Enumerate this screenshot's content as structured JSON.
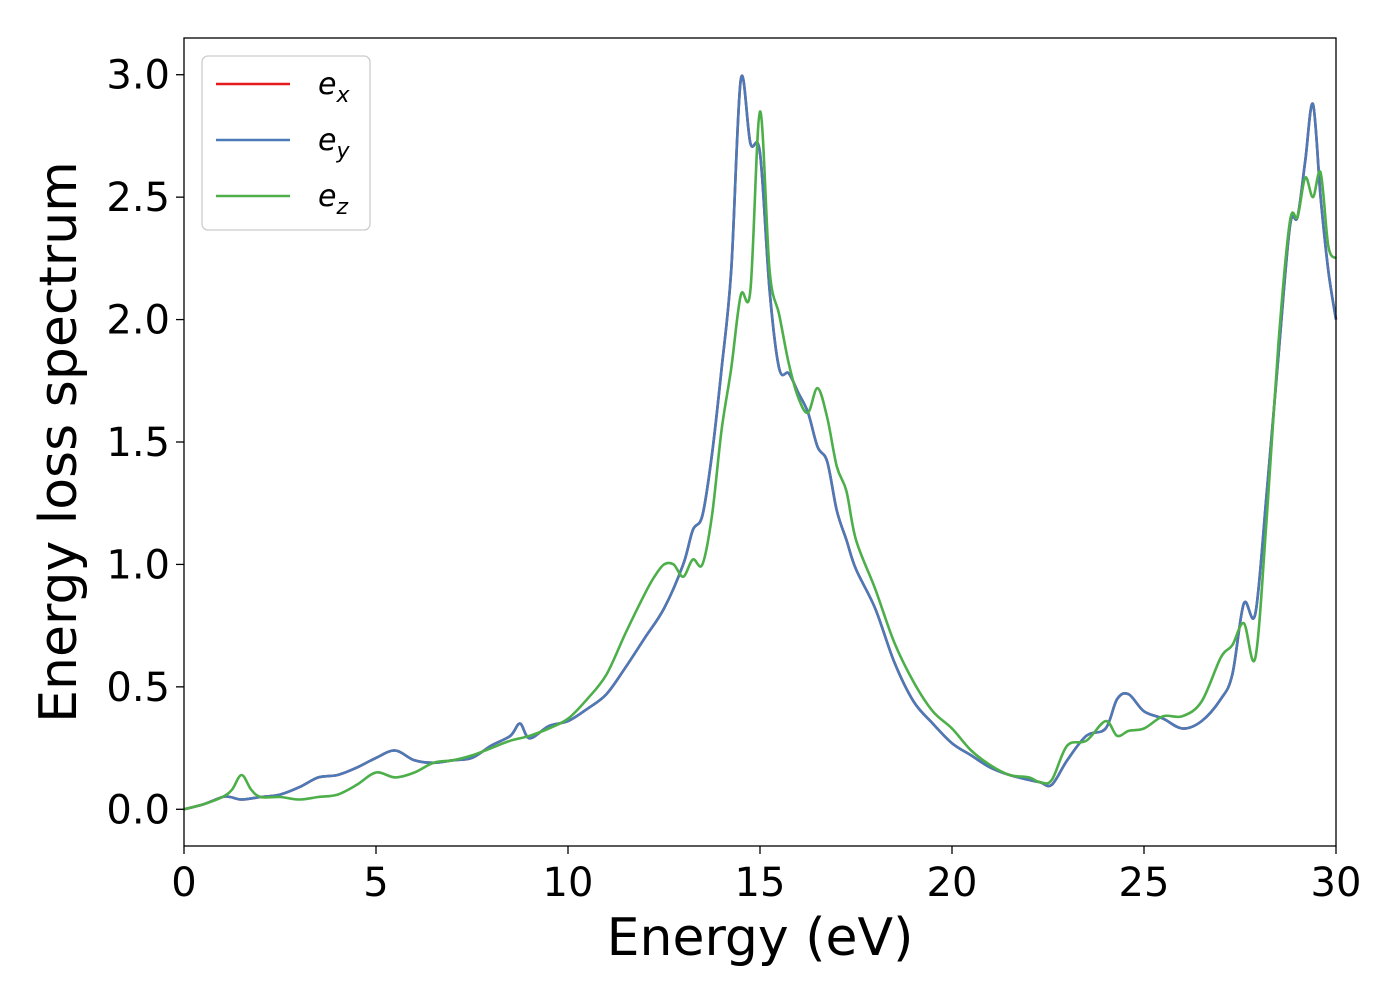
{
  "chart_data": {
    "type": "line",
    "xlabel": "Energy (eV)",
    "ylabel": "Energy loss spectrum",
    "xlim": [
      0,
      30
    ],
    "ylim": [
      -0.15,
      3.15
    ],
    "xticks": [
      "0",
      "5",
      "10",
      "15",
      "20",
      "25",
      "30"
    ],
    "yticks": [
      "0.0",
      "0.5",
      "1.0",
      "1.5",
      "2.0",
      "2.5",
      "3.0"
    ],
    "grid": false,
    "legend_position": "top-left",
    "series": [
      {
        "name": "e",
        "subscript": "x",
        "color": "#e41a1c",
        "x": [
          0,
          0.5,
          1,
          1.2,
          1.5,
          2,
          2.5,
          3,
          3.5,
          4,
          4.5,
          5,
          5.5,
          6,
          6.5,
          7,
          7.5,
          8,
          8.5,
          8.75,
          9,
          9.5,
          10,
          10.5,
          11,
          11.5,
          12,
          12.5,
          13,
          13.25,
          13.5,
          13.75,
          14,
          14.25,
          14.5,
          14.75,
          15,
          15.25,
          15.5,
          15.75,
          16,
          16.25,
          16.5,
          16.75,
          17,
          17.25,
          17.5,
          18,
          18.5,
          19,
          19.5,
          20,
          20.5,
          21,
          21.5,
          22,
          22.3,
          22.6,
          23,
          23.5,
          24,
          24.3,
          24.6,
          25,
          25.5,
          26,
          26.5,
          27,
          27.3,
          27.6,
          27.9,
          28.2,
          28.5,
          28.8,
          29,
          29.2,
          29.4,
          29.6,
          29.8,
          30
        ],
        "y": [
          0,
          0.02,
          0.05,
          0.05,
          0.04,
          0.05,
          0.06,
          0.09,
          0.13,
          0.14,
          0.17,
          0.21,
          0.24,
          0.2,
          0.19,
          0.2,
          0.21,
          0.26,
          0.3,
          0.35,
          0.29,
          0.34,
          0.36,
          0.41,
          0.47,
          0.58,
          0.7,
          0.82,
          1.0,
          1.14,
          1.2,
          1.45,
          1.8,
          2.2,
          2.98,
          2.72,
          2.68,
          2.12,
          1.8,
          1.78,
          1.7,
          1.62,
          1.48,
          1.42,
          1.22,
          1.1,
          0.98,
          0.82,
          0.6,
          0.44,
          0.35,
          0.27,
          0.22,
          0.17,
          0.14,
          0.12,
          0.11,
          0.1,
          0.2,
          0.3,
          0.33,
          0.45,
          0.47,
          0.4,
          0.37,
          0.33,
          0.36,
          0.45,
          0.55,
          0.84,
          0.8,
          1.3,
          1.85,
          2.38,
          2.42,
          2.65,
          2.88,
          2.5,
          2.2,
          2.0
        ]
      },
      {
        "name": "e",
        "subscript": "y",
        "color": "#4a7ab8",
        "x": [
          0,
          0.5,
          1,
          1.2,
          1.5,
          2,
          2.5,
          3,
          3.5,
          4,
          4.5,
          5,
          5.5,
          6,
          6.5,
          7,
          7.5,
          8,
          8.5,
          8.75,
          9,
          9.5,
          10,
          10.5,
          11,
          11.5,
          12,
          12.5,
          13,
          13.25,
          13.5,
          13.75,
          14,
          14.25,
          14.5,
          14.75,
          15,
          15.25,
          15.5,
          15.75,
          16,
          16.25,
          16.5,
          16.75,
          17,
          17.25,
          17.5,
          18,
          18.5,
          19,
          19.5,
          20,
          20.5,
          21,
          21.5,
          22,
          22.3,
          22.6,
          23,
          23.5,
          24,
          24.3,
          24.6,
          25,
          25.5,
          26,
          26.5,
          27,
          27.3,
          27.6,
          27.9,
          28.2,
          28.5,
          28.8,
          29,
          29.2,
          29.4,
          29.6,
          29.8,
          30
        ],
        "y": [
          0,
          0.02,
          0.05,
          0.05,
          0.04,
          0.05,
          0.06,
          0.09,
          0.13,
          0.14,
          0.17,
          0.21,
          0.24,
          0.2,
          0.19,
          0.2,
          0.21,
          0.26,
          0.3,
          0.35,
          0.29,
          0.34,
          0.36,
          0.41,
          0.47,
          0.58,
          0.7,
          0.82,
          1.0,
          1.14,
          1.2,
          1.45,
          1.8,
          2.2,
          2.98,
          2.72,
          2.68,
          2.12,
          1.8,
          1.78,
          1.7,
          1.62,
          1.48,
          1.42,
          1.22,
          1.1,
          0.98,
          0.82,
          0.6,
          0.44,
          0.35,
          0.27,
          0.22,
          0.17,
          0.14,
          0.12,
          0.11,
          0.1,
          0.2,
          0.3,
          0.33,
          0.45,
          0.47,
          0.4,
          0.37,
          0.33,
          0.36,
          0.45,
          0.55,
          0.84,
          0.8,
          1.3,
          1.85,
          2.38,
          2.42,
          2.65,
          2.88,
          2.5,
          2.2,
          2.0
        ]
      },
      {
        "name": "e",
        "subscript": "z",
        "color": "#4daf4a",
        "x": [
          0,
          0.5,
          1,
          1.25,
          1.5,
          1.75,
          2,
          2.5,
          3,
          3.5,
          4,
          4.5,
          5,
          5.5,
          6,
          6.5,
          7,
          7.5,
          8,
          8.5,
          9,
          9.5,
          10,
          10.5,
          11,
          11.5,
          12,
          12.25,
          12.5,
          12.75,
          13,
          13.25,
          13.5,
          13.75,
          14,
          14.25,
          14.5,
          14.75,
          15,
          15.25,
          15.5,
          15.75,
          16,
          16.25,
          16.5,
          16.75,
          17,
          17.25,
          17.5,
          18,
          18.5,
          19,
          19.5,
          20,
          20.5,
          21,
          21.5,
          22,
          22.3,
          22.6,
          23,
          23.5,
          24,
          24.3,
          24.6,
          25,
          25.5,
          26,
          26.5,
          27,
          27.3,
          27.6,
          27.9,
          28.2,
          28.5,
          28.8,
          29,
          29.2,
          29.4,
          29.6,
          29.8,
          30
        ],
        "y": [
          0,
          0.02,
          0.05,
          0.08,
          0.14,
          0.08,
          0.05,
          0.05,
          0.04,
          0.05,
          0.06,
          0.1,
          0.15,
          0.13,
          0.15,
          0.19,
          0.2,
          0.22,
          0.25,
          0.28,
          0.3,
          0.33,
          0.37,
          0.45,
          0.55,
          0.72,
          0.88,
          0.95,
          1.0,
          1.0,
          0.95,
          1.02,
          1.0,
          1.2,
          1.55,
          1.8,
          2.1,
          2.12,
          2.85,
          2.2,
          2.02,
          1.82,
          1.68,
          1.62,
          1.72,
          1.6,
          1.4,
          1.3,
          1.1,
          0.9,
          0.68,
          0.52,
          0.4,
          0.33,
          0.24,
          0.18,
          0.14,
          0.13,
          0.11,
          0.12,
          0.26,
          0.28,
          0.36,
          0.3,
          0.32,
          0.33,
          0.38,
          0.38,
          0.44,
          0.62,
          0.67,
          0.76,
          0.62,
          1.2,
          1.9,
          2.4,
          2.42,
          2.58,
          2.5,
          2.6,
          2.3,
          2.25
        ]
      }
    ]
  }
}
